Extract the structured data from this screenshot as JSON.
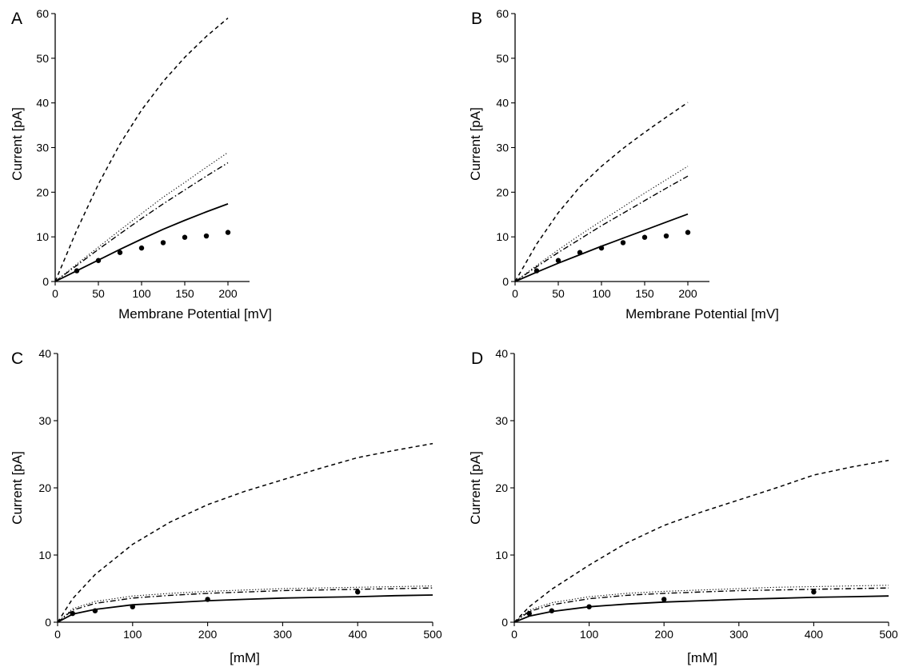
{
  "chart_data": [
    {
      "panel": "A",
      "type": "line",
      "xlabel": "Membrane Potential [mV]",
      "ylabel": "Current [pA]",
      "xlim": [
        0,
        225
      ],
      "ylim": [
        0,
        60
      ],
      "xticks": [
        0,
        50,
        100,
        150,
        200
      ],
      "yticks": [
        0,
        10,
        20,
        30,
        40,
        50,
        60
      ],
      "series": [
        {
          "style": "dashed",
          "x": [
            0,
            25,
            50,
            75,
            100,
            125,
            150,
            175,
            200
          ],
          "y": [
            0,
            11.5,
            21.8,
            30.8,
            38.4,
            44.8,
            50.2,
            54.9,
            59.0
          ]
        },
        {
          "style": "dotted",
          "x": [
            0,
            25,
            50,
            75,
            100,
            125,
            150,
            175,
            200
          ],
          "y": [
            0,
            3.9,
            7.7,
            11.5,
            15.2,
            18.9,
            22.2,
            25.6,
            28.9
          ]
        },
        {
          "style": "dashdot",
          "x": [
            0,
            25,
            50,
            75,
            100,
            125,
            150,
            175,
            200
          ],
          "y": [
            0,
            3.6,
            7.2,
            10.7,
            14.1,
            17.4,
            20.5,
            23.6,
            26.6
          ]
        },
        {
          "style": "solid",
          "x": [
            0,
            25,
            50,
            75,
            100,
            125,
            150,
            175,
            200
          ],
          "y": [
            0,
            2.4,
            4.8,
            7.2,
            9.5,
            11.7,
            13.7,
            15.6,
            17.4
          ]
        },
        {
          "style": "markers",
          "x": [
            25,
            50,
            75,
            100,
            125,
            150,
            175,
            200
          ],
          "y": [
            2.4,
            4.7,
            6.5,
            7.5,
            8.7,
            9.9,
            10.2,
            11.0
          ]
        }
      ]
    },
    {
      "panel": "B",
      "type": "line",
      "xlabel": "Membrane Potential [mV]",
      "ylabel": "Current [pA]",
      "xlim": [
        0,
        225
      ],
      "ylim": [
        0,
        60
      ],
      "xticks": [
        0,
        50,
        100,
        150,
        200
      ],
      "yticks": [
        0,
        10,
        20,
        30,
        40,
        50,
        60
      ],
      "series": [
        {
          "style": "dashed",
          "x": [
            0,
            25,
            50,
            75,
            100,
            125,
            150,
            175,
            200
          ],
          "y": [
            0,
            8.4,
            15.4,
            21.2,
            25.8,
            29.8,
            33.4,
            36.8,
            40.1
          ]
        },
        {
          "style": "dotted",
          "x": [
            0,
            25,
            50,
            75,
            100,
            125,
            150,
            175,
            200
          ],
          "y": [
            0,
            3.6,
            7.1,
            10.4,
            13.6,
            16.7,
            19.8,
            22.8,
            25.8
          ]
        },
        {
          "style": "dashdot",
          "x": [
            0,
            25,
            50,
            75,
            100,
            125,
            150,
            175,
            200
          ],
          "y": [
            0,
            3.3,
            6.5,
            9.5,
            12.5,
            15.3,
            18.1,
            20.9,
            23.6
          ]
        },
        {
          "style": "solid",
          "x": [
            0,
            25,
            50,
            75,
            100,
            125,
            150,
            175,
            200
          ],
          "y": [
            0,
            2.1,
            4.1,
            6.0,
            7.9,
            9.7,
            11.5,
            13.3,
            15.1
          ]
        },
        {
          "style": "markers",
          "x": [
            25,
            50,
            75,
            100,
            125,
            150,
            175,
            200
          ],
          "y": [
            2.4,
            4.7,
            6.5,
            7.5,
            8.7,
            9.9,
            10.2,
            11.0
          ]
        }
      ]
    },
    {
      "panel": "C",
      "type": "line",
      "xlabel": "[mM]",
      "ylabel": "Current [pA]",
      "xlim": [
        0,
        500
      ],
      "ylim": [
        0,
        40
      ],
      "xticks": [
        0,
        100,
        200,
        300,
        400,
        500
      ],
      "yticks": [
        0,
        10,
        20,
        30,
        40
      ],
      "series": [
        {
          "style": "dashed",
          "x": [
            0,
            20,
            50,
            100,
            150,
            200,
            250,
            300,
            350,
            400,
            450,
            500
          ],
          "y": [
            0,
            3.5,
            7.1,
            11.6,
            14.9,
            17.5,
            19.5,
            21.2,
            22.9,
            24.5,
            25.6,
            26.6
          ]
        },
        {
          "style": "dotted",
          "x": [
            0,
            20,
            50,
            100,
            150,
            200,
            250,
            300,
            350,
            400,
            450,
            500
          ],
          "y": [
            0,
            2.0,
            3.1,
            3.9,
            4.3,
            4.6,
            4.8,
            5.0,
            5.1,
            5.2,
            5.3,
            5.4
          ]
        },
        {
          "style": "dashdot",
          "x": [
            0,
            20,
            50,
            100,
            150,
            200,
            250,
            300,
            350,
            400,
            450,
            500
          ],
          "y": [
            0,
            1.8,
            2.8,
            3.6,
            4.0,
            4.3,
            4.5,
            4.7,
            4.8,
            4.9,
            5.0,
            5.1
          ]
        },
        {
          "style": "solid",
          "x": [
            0,
            20,
            50,
            100,
            150,
            200,
            250,
            300,
            350,
            400,
            450,
            500
          ],
          "y": [
            0,
            1.2,
            1.9,
            2.6,
            2.9,
            3.2,
            3.4,
            3.6,
            3.7,
            3.8,
            3.95,
            4.05
          ]
        },
        {
          "style": "markers",
          "x": [
            20,
            50,
            100,
            200,
            400
          ],
          "y": [
            1.3,
            1.7,
            2.3,
            3.4,
            4.5
          ]
        }
      ]
    },
    {
      "panel": "D",
      "type": "line",
      "xlabel": "[mM]",
      "ylabel": "Current [pA]",
      "xlim": [
        0,
        500
      ],
      "ylim": [
        0,
        40
      ],
      "xticks": [
        0,
        100,
        200,
        300,
        400,
        500
      ],
      "yticks": [
        0,
        10,
        20,
        30,
        40
      ],
      "series": [
        {
          "style": "dashed",
          "x": [
            0,
            20,
            50,
            100,
            150,
            200,
            250,
            300,
            350,
            400,
            450,
            500
          ],
          "y": [
            0,
            2.3,
            4.9,
            8.5,
            11.8,
            14.4,
            16.4,
            18.2,
            20.0,
            21.9,
            23.1,
            24.1
          ]
        },
        {
          "style": "dotted",
          "x": [
            0,
            20,
            50,
            100,
            150,
            200,
            250,
            300,
            350,
            400,
            450,
            500
          ],
          "y": [
            0,
            1.8,
            2.9,
            3.8,
            4.3,
            4.6,
            4.8,
            5.0,
            5.2,
            5.3,
            5.4,
            5.5
          ]
        },
        {
          "style": "dashdot",
          "x": [
            0,
            20,
            50,
            100,
            150,
            200,
            250,
            300,
            350,
            400,
            450,
            500
          ],
          "y": [
            0,
            1.6,
            2.6,
            3.5,
            4.0,
            4.3,
            4.5,
            4.7,
            4.8,
            4.9,
            5.0,
            5.1
          ]
        },
        {
          "style": "solid",
          "x": [
            0,
            20,
            50,
            100,
            150,
            200,
            250,
            300,
            350,
            400,
            450,
            500
          ],
          "y": [
            0,
            0.9,
            1.6,
            2.3,
            2.7,
            3.0,
            3.2,
            3.4,
            3.55,
            3.7,
            3.8,
            3.9
          ]
        },
        {
          "style": "markers",
          "x": [
            20,
            50,
            100,
            200,
            400
          ],
          "y": [
            1.3,
            1.7,
            2.3,
            3.4,
            4.5
          ]
        }
      ]
    }
  ]
}
